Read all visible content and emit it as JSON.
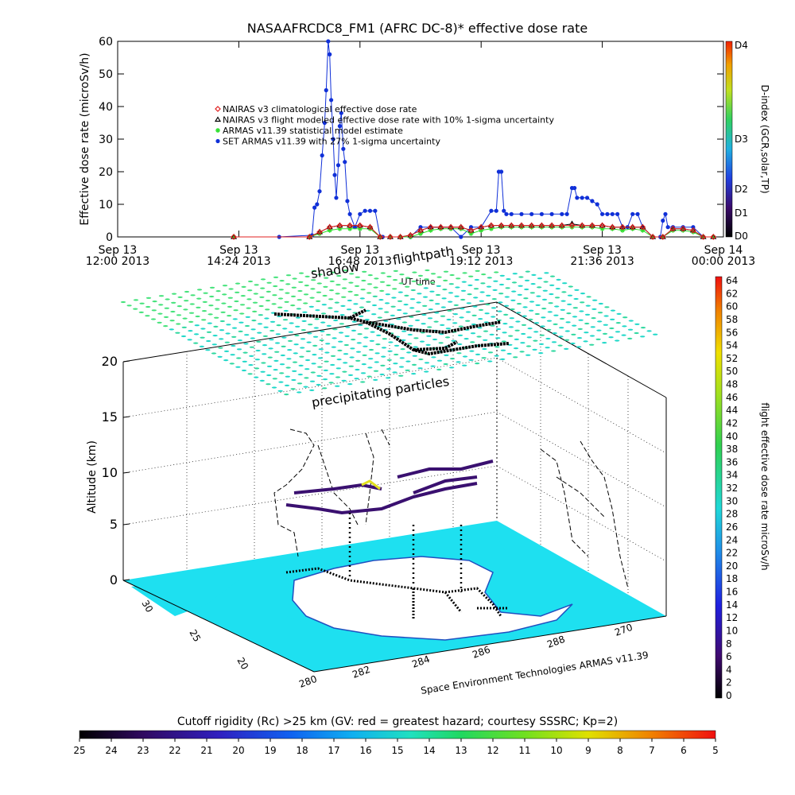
{
  "title": "NASAAFRCDC8_FM1 (AFRC DC-8)* effective dose rate",
  "chart_data": [
    {
      "type": "line",
      "title": "NASAAFRCDC8_FM1 (AFRC DC-8)* effective dose rate",
      "ylabel": "Effective dose rate (microSv/h)",
      "xlabel": "UT time",
      "ylim": [
        0,
        60
      ],
      "y_ticks": [
        "0",
        "10",
        "20",
        "30",
        "40",
        "50",
        "60"
      ],
      "x_ticks": [
        {
          "line1": "Sep 13",
          "line2": "12:00 2013"
        },
        {
          "line1": "Sep 13",
          "line2": "14:24 2013"
        },
        {
          "line1": "Sep 13",
          "line2": "16:48 2013"
        },
        {
          "line1": "Sep 13",
          "line2": "19:12 2013"
        },
        {
          "line1": "Sep 13",
          "line2": "21:36 2013"
        },
        {
          "line1": "Sep 14",
          "line2": "00:00 2013"
        }
      ],
      "x_range_hours": [
        12,
        24
      ],
      "legend": [
        {
          "label": "NAIRAS v3 climatological effective dose rate",
          "marker": "diamond",
          "color": "#e02020"
        },
        {
          "label": "NAIRAS v3 flight modeled effective dose rate with 10% 1-sigma uncertainty",
          "marker": "triangle",
          "color": "#000000"
        },
        {
          "label": "ARMAS v11.39 statistical model estimate",
          "marker": "asterisk",
          "color": "#30e030"
        },
        {
          "label": "SET ARMAS v11.39 with 27% 1-sigma uncertainty",
          "marker": "circle",
          "color": "#1030d8"
        }
      ],
      "legend_position": "upper-left",
      "series": [
        {
          "name": "SET ARMAS v11.39 with 27% 1-sigma uncertainty",
          "color": "#1030d8",
          "x": [
            14.3,
            15.2,
            15.85,
            15.9,
            15.95,
            16.0,
            16.05,
            16.1,
            16.13,
            16.17,
            16.2,
            16.23,
            16.27,
            16.3,
            16.33,
            16.37,
            16.4,
            16.43,
            16.47,
            16.5,
            16.55,
            16.6,
            16.7,
            16.8,
            16.9,
            17.0,
            17.1,
            17.2,
            17.25,
            17.4,
            17.6,
            17.8,
            18.0,
            18.2,
            18.4,
            18.6,
            18.8,
            19.0,
            19.2,
            19.4,
            19.5,
            19.55,
            19.6,
            19.65,
            19.7,
            19.8,
            20.0,
            20.2,
            20.4,
            20.6,
            20.8,
            20.9,
            21.0,
            21.05,
            21.1,
            21.2,
            21.3,
            21.4,
            21.5,
            21.6,
            21.7,
            21.8,
            21.9,
            22.0,
            22.1,
            22.2,
            22.3,
            22.4,
            22.6,
            22.75,
            22.8,
            22.85,
            22.9,
            23.0,
            23.2,
            23.4,
            23.6,
            23.8
          ],
          "y": [
            0,
            0,
            0.5,
            9,
            10,
            14,
            25,
            35,
            45,
            60,
            56,
            42,
            30,
            19,
            12,
            22,
            34,
            38,
            27,
            23,
            11,
            7,
            3,
            7,
            8,
            8,
            8,
            0,
            0,
            0,
            0,
            0,
            3,
            3,
            3,
            3,
            0,
            3,
            3,
            8,
            8,
            20,
            20,
            8,
            7,
            7,
            7,
            7,
            7,
            7,
            7,
            7,
            15,
            15,
            12,
            12,
            12,
            11,
            10,
            7,
            7,
            7,
            7,
            3,
            3,
            7,
            7,
            3,
            0,
            0,
            5,
            7,
            3,
            3,
            3,
            3,
            0,
            0
          ]
        },
        {
          "name": "ARMAS v11.39 statistical model estimate",
          "color": "#30e030",
          "x": [
            14.3,
            15.8,
            16.0,
            16.2,
            16.4,
            16.6,
            16.8,
            17.0,
            17.2,
            17.4,
            17.6,
            17.8,
            18.0,
            18.2,
            18.4,
            18.6,
            18.8,
            19.0,
            19.2,
            19.4,
            19.6,
            19.8,
            20.0,
            20.2,
            20.4,
            20.6,
            20.8,
            21.0,
            21.2,
            21.4,
            21.6,
            21.8,
            22.0,
            22.2,
            22.4,
            22.6,
            22.8,
            23.0,
            23.2,
            23.4,
            23.6,
            23.8
          ],
          "y": [
            0,
            0,
            1,
            2,
            2.5,
            2.5,
            2.5,
            2.5,
            0,
            0,
            0,
            0,
            1,
            2,
            2.5,
            2.5,
            2.5,
            1,
            2,
            2.5,
            3,
            3,
            3,
            3,
            3,
            3,
            3,
            3,
            3,
            3,
            2.5,
            2.5,
            2,
            2.5,
            2,
            0,
            0,
            2,
            2,
            1.5,
            0,
            0
          ]
        },
        {
          "name": "NAIRAS v3 flight modeled effective dose rate with 10% 1-sigma uncertainty",
          "color": "#000000",
          "x": [
            14.3,
            15.8,
            16.0,
            16.2,
            16.4,
            16.6,
            16.8,
            17.0,
            17.2,
            17.4,
            17.6,
            17.8,
            18.0,
            18.2,
            18.4,
            18.6,
            18.8,
            19.0,
            19.2,
            19.4,
            19.6,
            19.8,
            20.0,
            20.2,
            20.4,
            20.6,
            20.8,
            21.0,
            21.2,
            21.4,
            21.6,
            21.8,
            22.0,
            22.2,
            22.4,
            22.6,
            22.8,
            23.0,
            23.2,
            23.4,
            23.6,
            23.8
          ],
          "y": [
            0,
            0,
            1.5,
            3,
            3.5,
            3.5,
            3.5,
            3,
            0,
            0,
            0,
            0.5,
            2,
            3,
            3,
            3,
            3,
            2,
            3,
            3.5,
            3.5,
            3.5,
            3.5,
            3.5,
            3.5,
            3.5,
            3.5,
            4,
            3.5,
            3.5,
            3.5,
            3,
            3,
            3,
            3,
            0,
            0,
            2.5,
            2.5,
            2,
            0,
            0
          ]
        },
        {
          "name": "NAIRAS v3 climatological effective dose rate",
          "color": "#e02020",
          "x": [
            14.3,
            15.8,
            16.0,
            16.2,
            16.4,
            16.6,
            16.8,
            17.0,
            17.2,
            17.4,
            17.6,
            17.8,
            18.0,
            18.2,
            18.4,
            18.6,
            18.8,
            19.0,
            19.2,
            19.4,
            19.6,
            19.8,
            20.0,
            20.2,
            20.4,
            20.6,
            20.8,
            21.0,
            21.2,
            21.4,
            21.6,
            21.8,
            22.0,
            22.2,
            22.4,
            22.6,
            22.8,
            23.0,
            23.2,
            23.4,
            23.6,
            23.8
          ],
          "y": [
            0,
            0,
            1.5,
            3,
            3.5,
            3.5,
            3.5,
            3,
            0,
            0,
            0,
            0.5,
            2,
            3,
            3,
            3,
            3,
            2,
            3,
            3.5,
            3.5,
            3.5,
            3.5,
            3.5,
            3.5,
            3.5,
            3.5,
            3.5,
            3.5,
            3.5,
            3.5,
            3,
            3,
            3,
            3,
            0,
            0,
            2.5,
            2.5,
            2,
            0,
            0
          ]
        }
      ],
      "right_colorbar": {
        "title": "D-index (GCR,solar,TP)",
        "labels": [
          "D0",
          "D1",
          "D2",
          "D3",
          "D4"
        ]
      }
    },
    {
      "type": "scatter",
      "title": "",
      "zlabel": "Altitude (km)",
      "z_ticks": [
        "0",
        "5",
        "10",
        "15",
        "20"
      ],
      "lat_ticks": [
        "30",
        "25",
        "20"
      ],
      "lon_ticks": [
        "280",
        "282",
        "284",
        "286",
        "288",
        "270"
      ],
      "annotations": [
        "flightpath",
        "shadow",
        "precipitating particles"
      ],
      "credit": "Space Environment Technologies ARMAS v11.39",
      "right_colorbar": {
        "title": "flight effective dose rate microSv/h",
        "labels": [
          "0",
          "2",
          "4",
          "6",
          "8",
          "10",
          "12",
          "14",
          "16",
          "18",
          "20",
          "22",
          "24",
          "26",
          "28",
          "30",
          "32",
          "34",
          "36",
          "38",
          "40",
          "42",
          "44",
          "46",
          "48",
          "50",
          "52",
          "54",
          "56",
          "58",
          "60",
          "62",
          "64"
        ]
      },
      "bottom_colorbar": {
        "title": "Cutoff rigidity (Rc) >25 km (GV: red = greatest hazard; courtesy SSSRC; Kp=2)",
        "labels": [
          "25",
          "24",
          "23",
          "22",
          "21",
          "20",
          "19",
          "18",
          "17",
          "16",
          "15",
          "14",
          "13",
          "12",
          "11",
          "10",
          "9",
          "8",
          "7",
          "6",
          "5"
        ]
      }
    }
  ]
}
